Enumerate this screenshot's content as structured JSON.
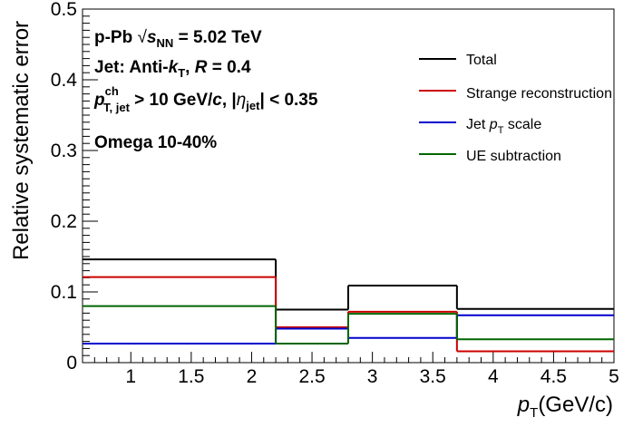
{
  "chart_data": {
    "type": "line",
    "step": true,
    "xlabel": "p",
    "xlabel_sub": "T",
    "xlabel_unit": "(GeV/c)",
    "ylabel": "Relative systematic error",
    "xlim": [
      0.6,
      5.0
    ],
    "ylim": [
      0,
      0.5
    ],
    "x_ticks": [
      "1",
      "1.5",
      "2",
      "2.5",
      "3",
      "3.5",
      "4",
      "4.5",
      "5"
    ],
    "y_ticks": [
      "0",
      "0.1",
      "0.2",
      "0.3",
      "0.4",
      "0.5"
    ],
    "bin_edges": [
      0.6,
      2.2,
      2.8,
      3.7,
      5.0
    ],
    "series": [
      {
        "name": "Total",
        "color": "#000000",
        "values": [
          0.146,
          0.075,
          0.109,
          0.076
        ]
      },
      {
        "name": "Strange reconstruction",
        "color": "#cc0000",
        "values": [
          0.121,
          0.05,
          0.072,
          0.016
        ]
      },
      {
        "name": "Jet p_T scale",
        "color": "#0000cc",
        "values": [
          0.027,
          0.048,
          0.035,
          0.067
        ]
      },
      {
        "name": "UE subtraction",
        "color": "#006600",
        "values": [
          0.08,
          0.027,
          0.069,
          0.033
        ]
      }
    ],
    "legend": {
      "position": "top-right",
      "entries": [
        {
          "text": "Total",
          "color": "#000000"
        },
        {
          "text": "Strange reconstruction",
          "color": "#cc0000"
        },
        {
          "text": "Jet ",
          "italic": "p",
          "sub": "T",
          "tail": " scale",
          "color": "#0000cc"
        },
        {
          "text": "UE subtraction",
          "color": "#006600"
        }
      ]
    },
    "annotations": {
      "line1_a": "p-Pb ",
      "line1_sqrt": "√",
      "line1_s": "s",
      "line1_sub": "NN",
      "line1_b": " = 5.02 TeV",
      "line2_a": "Jet: Anti-",
      "line2_k": "k",
      "line2_ksub": "T",
      "line2_b": ",  ",
      "line2_R": "R",
      "line2_c": " = 0.4",
      "line3_p": "p",
      "line3_sup": "ch",
      "line3_sub": "T, jet",
      "line3_a": " > 10 GeV/",
      "line3_c": "c",
      "line3_b": ", |",
      "line3_eta": "η",
      "line3_etasub": "jet",
      "line3_d": "| < 0.35",
      "line4": "Omega 10-40%"
    }
  }
}
